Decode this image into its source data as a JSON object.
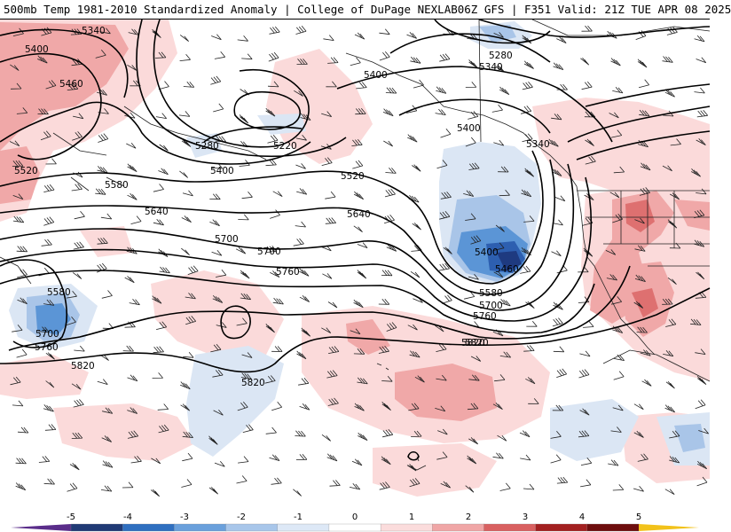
{
  "header": {
    "left_title": "500mb Temp 1981-2010 Standardized Anomaly | College of DuPage NEXLAB",
    "right_title": "06Z GFS | F351 Valid: 21Z TUE APR 08 2025"
  },
  "contour_labels": [
    "5340",
    "5400",
    "5460",
    "5520",
    "5580",
    "5640",
    "5700",
    "5760",
    "5820",
    "5280",
    "5220",
    "5400",
    "5520",
    "5640",
    "5700",
    "5400",
    "5460",
    "5580",
    "5700",
    "5760",
    "5820",
    "5400",
    "5340",
    "5280",
    "5340",
    "5580",
    "5700",
    "5760",
    "5820",
    "5820",
    "5400"
  ],
  "colorbar": {
    "ticks": [
      "-5",
      "-4",
      "-3",
      "-2",
      "-1",
      "0",
      "1",
      "2",
      "3",
      "4",
      "5"
    ],
    "colors": [
      "#5a2d8a",
      "#203a75",
      "#2f6fc0",
      "#6aa0dc",
      "#a8c6ea",
      "#dde8f6",
      "#ffffff",
      "#fbdcdc",
      "#f0a6a6",
      "#d96060",
      "#a32020",
      "#6e0e0e",
      "#f2c21a"
    ]
  },
  "colors": {
    "warm_light": "#fbdada",
    "warm_mid": "#f0a8a8",
    "warm_strong": "#de7070",
    "cold_light": "#dbe6f4",
    "cold_mid": "#a9c5e8",
    "cold_strong": "#5b95d6",
    "cold_deep": "#2d5fb0",
    "cold_deepest": "#1e3a80"
  }
}
